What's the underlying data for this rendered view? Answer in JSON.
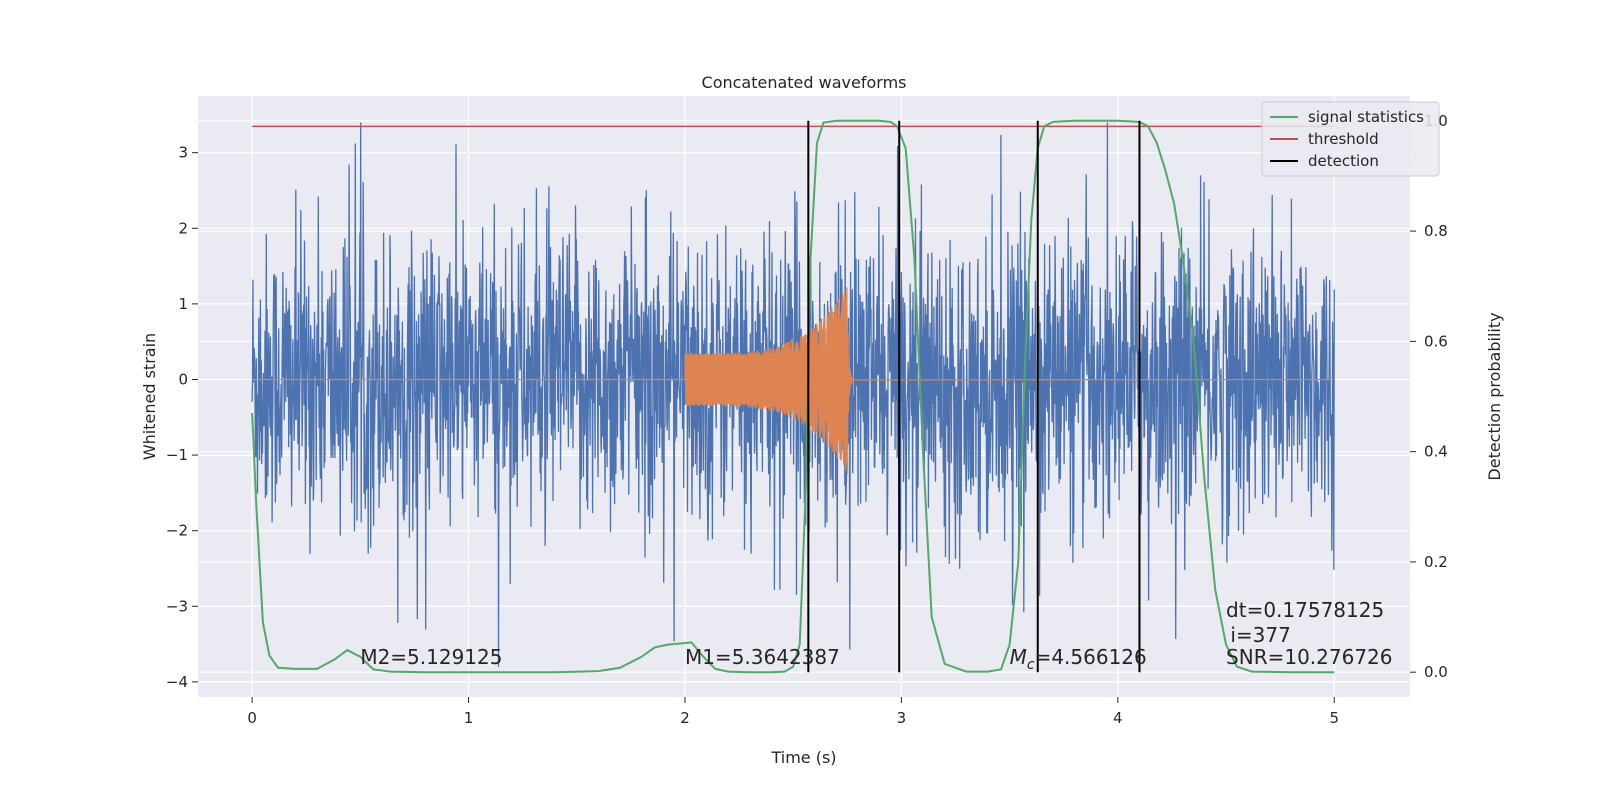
{
  "chart_data": {
    "type": "line",
    "title": "Concatenated waveforms",
    "xlabel": "Time (s)",
    "ylabel": "Whitened strain",
    "y2label": "Detection probability",
    "xlim": [
      -0.25,
      5.35
    ],
    "ylim": [
      -4.2,
      3.75
    ],
    "y2lim": [
      -0.045,
      1.045
    ],
    "xticks": [
      0,
      1,
      2,
      3,
      4,
      5
    ],
    "xtick_labels": [
      "0",
      "1",
      "2",
      "3",
      "4",
      "5"
    ],
    "yticks": [
      -4,
      -3,
      -2,
      -1,
      0,
      1,
      2,
      3
    ],
    "ytick_labels": [
      "−4",
      "−3",
      "−2",
      "−1",
      "0",
      "1",
      "2",
      "3"
    ],
    "y2ticks": [
      0.0,
      0.2,
      0.4,
      0.6,
      0.8,
      1.0
    ],
    "y2tick_labels": [
      "0.0",
      "0.2",
      "0.4",
      "0.6",
      "0.8",
      "1.0"
    ],
    "grid": true,
    "legend_position": "top-right",
    "series": [
      {
        "name": "signal statistics",
        "axis": "right",
        "color": "#55a868",
        "x": [
          0.0,
          0.02,
          0.05,
          0.08,
          0.12,
          0.2,
          0.3,
          0.38,
          0.44,
          0.5,
          0.56,
          0.64,
          0.8,
          1.0,
          1.2,
          1.4,
          1.6,
          1.7,
          1.8,
          1.86,
          1.92,
          1.98,
          2.03,
          2.08,
          2.14,
          2.2,
          2.3,
          2.4,
          2.46,
          2.5,
          2.53,
          2.56,
          2.58,
          2.61,
          2.64,
          2.7,
          2.8,
          2.9,
          2.95,
          2.98,
          3.02,
          3.06,
          3.1,
          3.14,
          3.2,
          3.3,
          3.4,
          3.46,
          3.5,
          3.54,
          3.57,
          3.6,
          3.63,
          3.66,
          3.7,
          3.8,
          4.0,
          4.1,
          4.14,
          4.18,
          4.22,
          4.26,
          4.3,
          4.35,
          4.4,
          4.45,
          4.5,
          4.55,
          4.62,
          4.8,
          5.0
        ],
        "y": [
          0.47,
          0.3,
          0.09,
          0.03,
          0.008,
          0.006,
          0.006,
          0.023,
          0.04,
          0.028,
          0.005,
          0.001,
          0.0,
          0.0,
          0.0,
          0.0,
          0.002,
          0.008,
          0.028,
          0.045,
          0.05,
          0.052,
          0.054,
          0.03,
          0.006,
          0.001,
          0.0,
          0.0,
          0.001,
          0.01,
          0.05,
          0.35,
          0.75,
          0.96,
          0.997,
          1.0,
          1.0,
          1.0,
          0.998,
          0.99,
          0.95,
          0.75,
          0.4,
          0.1,
          0.015,
          0.001,
          0.001,
          0.005,
          0.05,
          0.2,
          0.55,
          0.82,
          0.95,
          0.99,
          0.998,
          1.0,
          1.0,
          0.998,
          0.99,
          0.96,
          0.91,
          0.85,
          0.75,
          0.6,
          0.35,
          0.15,
          0.05,
          0.01,
          0.001,
          0.0,
          0.0
        ]
      },
      {
        "name": "threshold",
        "axis": "right",
        "color": "#c44e52",
        "x": [
          0.0,
          5.0
        ],
        "y": [
          0.99,
          0.99
        ]
      },
      {
        "name": "detection",
        "axis": "right",
        "color": "#000000",
        "x_positions": [
          2.57,
          2.99,
          3.63,
          4.1
        ],
        "y_range": [
          0.0,
          1.0
        ]
      }
    ],
    "strain_noise": {
      "name": "",
      "axis": "left",
      "color": "#4c72b0",
      "x_range": [
        0.0,
        5.0
      ],
      "typical_range": [
        -2.0,
        2.5
      ],
      "max_extent": [
        -3.8,
        3.4
      ]
    },
    "injected_waveform": {
      "name": "",
      "axis": "left",
      "color": "#dd8452",
      "x_start": 2.0,
      "x_merger": 2.75,
      "x_end": 5.0,
      "amplitude_start": 0.35,
      "amplitude_peak": 1.25
    },
    "annotations": [
      {
        "text": "M2=5.129125",
        "x": 0.5,
        "y2": 0.015
      },
      {
        "text": "M1=5.3642387",
        "x": 2.0,
        "y2": 0.015
      },
      {
        "prefix": "M",
        "subscript": "c",
        "text": "=4.566126",
        "x": 3.5,
        "y2": 0.015
      },
      {
        "text": "dt=0.17578125",
        "x": 4.5,
        "y2": 0.1
      },
      {
        "text": "i=377",
        "x": 4.52,
        "y2": 0.055
      },
      {
        "text": "SNR=10.276726",
        "x": 4.5,
        "y2": 0.015
      }
    ],
    "colors": {
      "plot_bg": "#eaeaf2",
      "grid": "#ffffff",
      "text": "#262626"
    }
  }
}
